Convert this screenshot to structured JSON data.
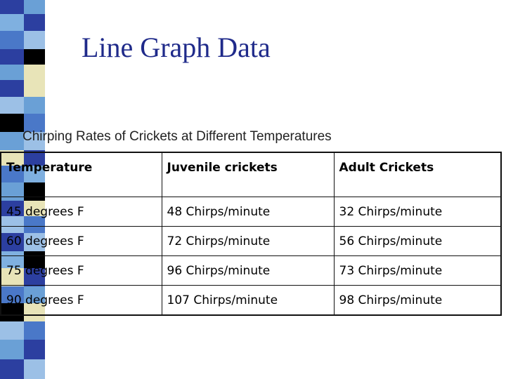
{
  "slide": {
    "title": "Line Graph Data",
    "subtitle": "Chirping Rates of Crickets at Different Temperatures",
    "accent_colors": [
      "#2c3fa0",
      "#6aa0d6",
      "#000000",
      "#e8e4b8",
      "#4a78c8",
      "#9cc0e6"
    ]
  },
  "table": {
    "headers": [
      "Temperature",
      "Juvenile crickets",
      "Adult Crickets"
    ],
    "rows": [
      [
        "45 degrees F",
        "48 Chirps/minute",
        "32 Chirps/minute"
      ],
      [
        "60 degrees F",
        "72 Chirps/minute",
        "56 Chirps/minute"
      ],
      [
        "75 degrees F",
        "96 Chirps/minute",
        "73 Chirps/minute"
      ],
      [
        "90 degrees F",
        "107 Chirps/minute",
        "98 Chirps/minute"
      ]
    ]
  }
}
